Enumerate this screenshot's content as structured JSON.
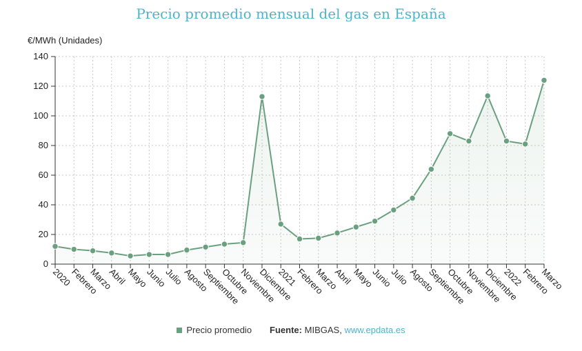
{
  "colors": {
    "series": "#6aa07f",
    "title": "#4fb3cc",
    "link": "#4fb3cc",
    "grid": "#c8c8c8",
    "axis": "#333333"
  },
  "chart_data": {
    "type": "area",
    "title": "Precio promedio mensual del gas en España",
    "ylabel": "€/MWh (Unidades)",
    "xlabel": "",
    "ylim": [
      0,
      140
    ],
    "yticks": [
      0,
      20,
      40,
      60,
      80,
      100,
      120,
      140
    ],
    "grid": true,
    "categories": [
      "2020",
      "Febrero",
      "Marzo",
      "Abril",
      "Mayo",
      "Junio",
      "Julio",
      "Agosto",
      "Septiembre",
      "Octubre",
      "Noviembre",
      "Diciembre",
      "2021",
      "Febrero",
      "Marzo",
      "Abril",
      "Mayo",
      "Junio",
      "Julio",
      "Agosto",
      "Septiembre",
      "Octubre",
      "Noviembre",
      "Diciembre",
      "2022",
      "Febrero",
      "Marzo"
    ],
    "series": [
      {
        "name": "Precio promedio",
        "values": [
          12,
          10,
          9,
          7.5,
          5.5,
          6.5,
          6.5,
          9.5,
          11.5,
          13.5,
          14.5,
          113,
          27,
          17,
          17.5,
          21,
          25,
          29,
          36.5,
          44.5,
          64,
          88,
          83,
          113.5,
          83,
          81,
          124
        ]
      }
    ],
    "legend": "bottom-center"
  },
  "legend": {
    "series_label": "Precio promedio",
    "source_label": "Fuente:",
    "source_name": "MIBGAS,",
    "source_link": "www.epdata.es"
  }
}
